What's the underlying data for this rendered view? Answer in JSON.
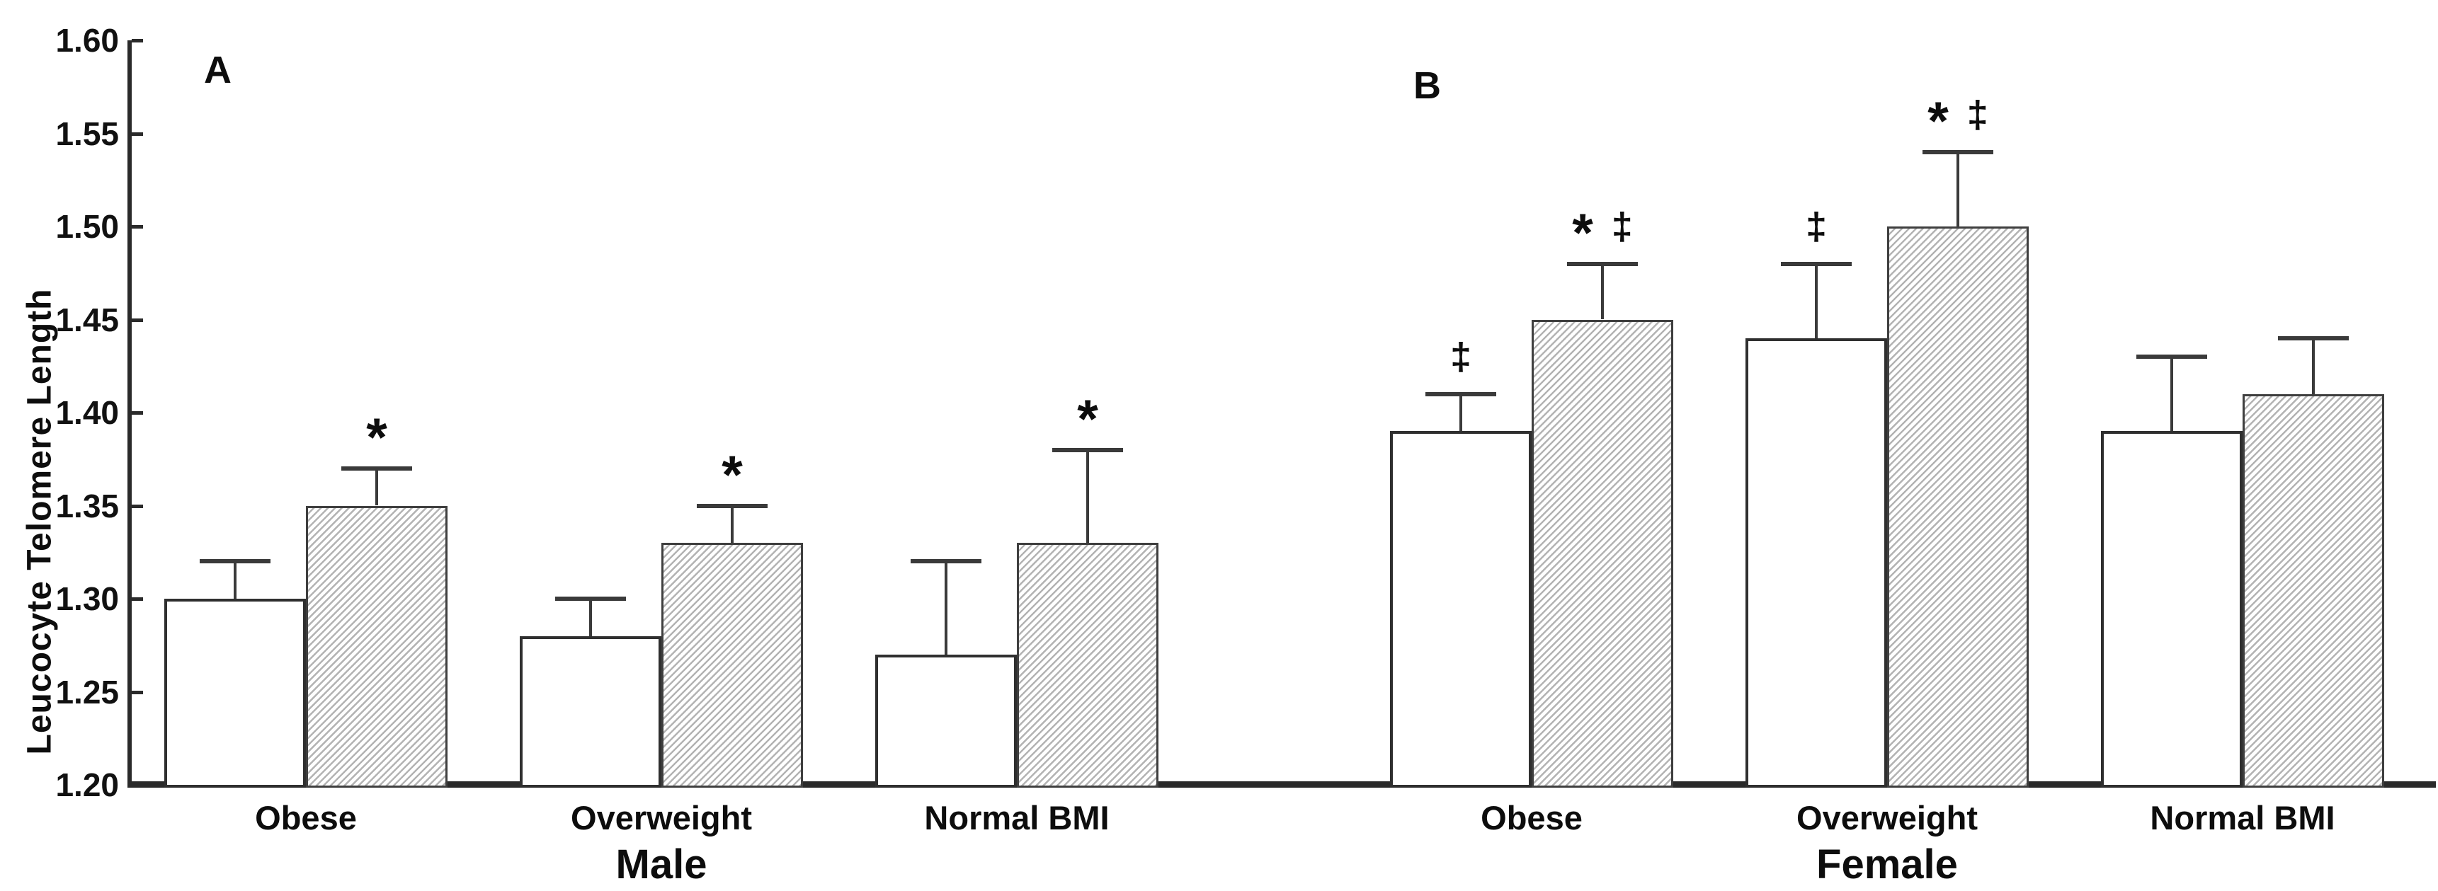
{
  "chart_data": {
    "type": "bar",
    "title": "",
    "ylabel": "Leucocyte Telomere Length",
    "xlabel": "",
    "ylim": [
      1.2,
      1.6
    ],
    "y_tick_interval": 0.05,
    "y_tick_labels": [
      "1.20",
      "1.25",
      "1.30",
      "1.35",
      "1.40",
      "1.45",
      "1.50",
      "1.55",
      "1.60"
    ],
    "grid": false,
    "legend_position": "none",
    "colors": {
      "axis": "#2a2a2a",
      "open_bar_fill": "#ffffff",
      "hatch_line": "#b3b3b3",
      "bar_outline": "#2f2f2f",
      "text": "#0d0d0d"
    },
    "panels": [
      {
        "label": "A",
        "sex_label": "Male",
        "categories": [
          "Obese",
          "Overweight",
          "Normal BMI"
        ],
        "series": [
          {
            "name": "open",
            "pattern": "plain",
            "values": [
              1.3,
              1.28,
              1.27
            ],
            "error_top": [
              1.32,
              1.3,
              1.32
            ],
            "markers": [
              "",
              "",
              ""
            ]
          },
          {
            "name": "hatched",
            "pattern": "diagonal-hatch",
            "values": [
              1.35,
              1.33,
              1.33
            ],
            "error_top": [
              1.37,
              1.35,
              1.38
            ],
            "markers": [
              "*",
              "*",
              "*"
            ]
          }
        ]
      },
      {
        "label": "B",
        "sex_label": "Female",
        "categories": [
          "Obese",
          "Overweight",
          "Normal BMI"
        ],
        "series": [
          {
            "name": "open",
            "pattern": "plain",
            "values": [
              1.39,
              1.44,
              1.39
            ],
            "error_top": [
              1.41,
              1.48,
              1.43
            ],
            "markers": [
              "‡",
              "‡",
              ""
            ]
          },
          {
            "name": "hatched",
            "pattern": "diagonal-hatch",
            "values": [
              1.45,
              1.5,
              1.41
            ],
            "error_top": [
              1.48,
              1.54,
              1.44
            ],
            "markers": [
              "* ‡",
              "* ‡",
              ""
            ]
          }
        ]
      }
    ]
  }
}
